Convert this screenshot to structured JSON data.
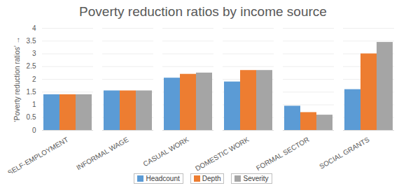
{
  "chart_data": {
    "type": "bar",
    "title": "Poverty reduction ratios by income source",
    "y_label": "‘Poverty reduction ratios’",
    "categories": [
      "SELF-EMPLOYMENT",
      "INFORMAL WAGE",
      "CASUAL WORK",
      "DOMESTIC WORK",
      "FORMAL SECTOR",
      "SOCIAL GRANTS"
    ],
    "series": [
      {
        "name": "Headcount",
        "color": "#5b9bd5",
        "values": [
          1.4,
          1.55,
          2.05,
          1.9,
          0.95,
          1.6
        ]
      },
      {
        "name": "Depth",
        "color": "#ed7d31",
        "values": [
          1.4,
          1.55,
          2.2,
          2.35,
          0.7,
          3.0
        ]
      },
      {
        "name": "Severity",
        "color": "#a5a5a5",
        "values": [
          1.4,
          1.55,
          2.25,
          2.35,
          0.6,
          3.45
        ]
      }
    ],
    "ylim": [
      0,
      4
    ],
    "yticks": [
      0,
      0.5,
      1,
      1.5,
      2,
      2.5,
      3,
      3.5,
      4
    ],
    "grid": true,
    "legend": "bottom"
  }
}
